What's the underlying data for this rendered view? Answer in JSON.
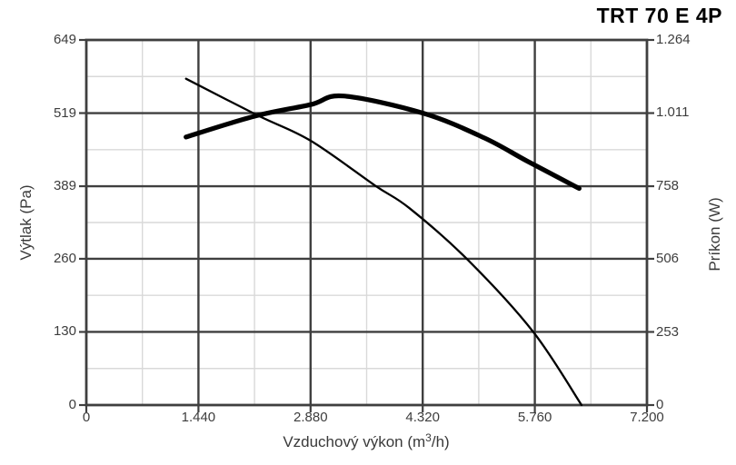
{
  "chart_data": {
    "type": "line",
    "title": "TRT 70 E 4P",
    "grid": "major-dark+minor-light",
    "legend": "none",
    "axes": {
      "x": {
        "title_prefix": "Vzduchový výkon (m",
        "title_sup": "3",
        "title_suffix": "/h)",
        "min": 0,
        "max": 7200,
        "ticks": [
          {
            "label": "0",
            "value": 0
          },
          {
            "label": "1.440",
            "value": 1440
          },
          {
            "label": "2.880",
            "value": 2880
          },
          {
            "label": "4.320",
            "value": 4320
          },
          {
            "label": "5.760",
            "value": 5760
          },
          {
            "label": "7.200",
            "value": 7200
          }
        ]
      },
      "y_left": {
        "title": "Výtlak (Pa)",
        "min": 0,
        "max": 649,
        "ticks": [
          {
            "label": "649",
            "value": 649
          },
          {
            "label": "519",
            "value": 519
          },
          {
            "label": "389",
            "value": 389
          },
          {
            "label": "260",
            "value": 260
          },
          {
            "label": "130",
            "value": 130
          },
          {
            "label": "0",
            "value": 0
          }
        ]
      },
      "y_right": {
        "title": "Príkon (W)",
        "min": 0,
        "max": 1264,
        "ticks": [
          {
            "label": "1.264",
            "value": 1264
          },
          {
            "label": "1.011",
            "value": 1011
          },
          {
            "label": "758",
            "value": 758
          },
          {
            "label": "506",
            "value": 506
          },
          {
            "label": "253",
            "value": 253
          },
          {
            "label": "0",
            "value": 0
          }
        ]
      }
    },
    "series": [
      {
        "name": "Výtlak (Pa)",
        "axis": "left",
        "line_weight": "thin",
        "points": [
          [
            1280,
            580
          ],
          [
            2200,
            515
          ],
          [
            2880,
            470
          ],
          [
            3710,
            390
          ],
          [
            4150,
            350
          ],
          [
            4900,
            258
          ],
          [
            5740,
            130
          ],
          [
            6360,
            0
          ]
        ]
      },
      {
        "name": "Príkon (W)",
        "axis": "right",
        "line_weight": "thick",
        "points": [
          [
            1280,
            928
          ],
          [
            2160,
            1000
          ],
          [
            2880,
            1040
          ],
          [
            3300,
            1070
          ],
          [
            4320,
            1011
          ],
          [
            5110,
            925
          ],
          [
            5660,
            845
          ],
          [
            6330,
            750
          ]
        ]
      }
    ]
  },
  "colors": {
    "curve": "#000000",
    "grid_major": "#3f3f3f",
    "grid_minor": "#d9d9d9",
    "border": "#3f3f3f",
    "tick": "#3f3f3f",
    "text": "#3d3d3d",
    "title": "#000000",
    "background": "#ffffff"
  }
}
